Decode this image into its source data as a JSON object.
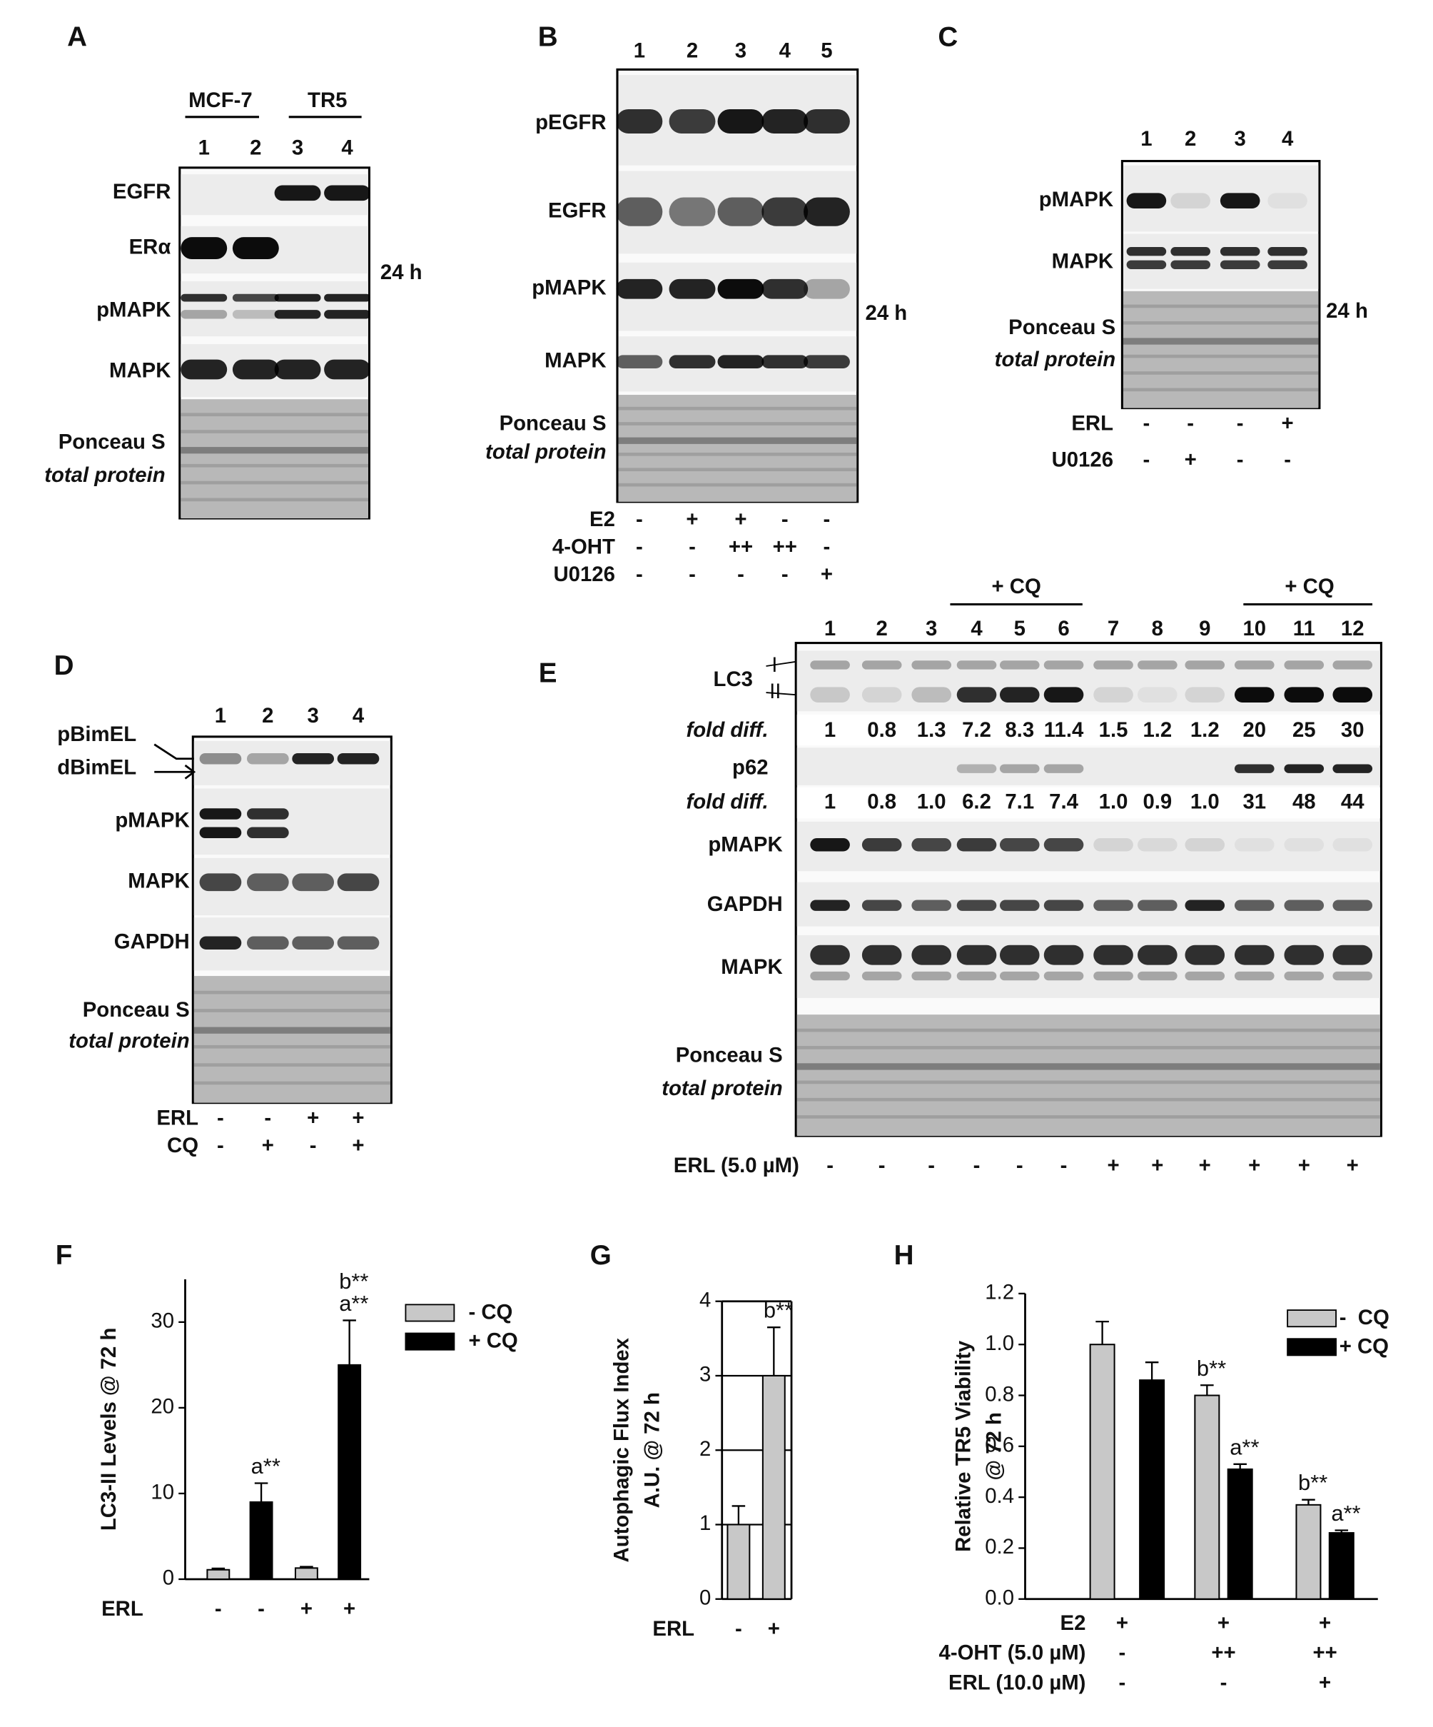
{
  "blots": {
    "A": {
      "label": "A",
      "groups": [
        {
          "name": "MCF-7",
          "lanes": [
            "1",
            "2"
          ]
        },
        {
          "name": "TR5",
          "lanes": [
            "3",
            "4"
          ]
        }
      ],
      "rows": [
        "EGFR",
        "ERα",
        "pMAPK",
        "MAPK"
      ],
      "loading": [
        "Ponceau S",
        "total protein"
      ],
      "time": "24 h"
    },
    "B": {
      "label": "B",
      "lanes": [
        "1",
        "2",
        "3",
        "4",
        "5"
      ],
      "rows": [
        "pEGFR",
        "EGFR",
        "pMAPK",
        "MAPK"
      ],
      "loading": [
        "Ponceau S",
        "total protein"
      ],
      "time": "24 h",
      "treatments": [
        {
          "label": "E2",
          "values": [
            "-",
            "+",
            "+",
            "-",
            "-"
          ]
        },
        {
          "label": "4-OHT",
          "values": [
            "-",
            "-",
            "++",
            "++",
            "-"
          ]
        },
        {
          "label": "U0126",
          "values": [
            "-",
            "-",
            "-",
            "-",
            "+"
          ]
        }
      ]
    },
    "C": {
      "label": "C",
      "lanes": [
        "1",
        "2",
        "3",
        "4"
      ],
      "rows": [
        "pMAPK",
        "MAPK"
      ],
      "loading": [
        "Ponceau S",
        "total protein"
      ],
      "time": "24 h",
      "treatments": [
        {
          "label": "ERL",
          "values": [
            "-",
            "-",
            "-",
            "+"
          ]
        },
        {
          "label": "U0126",
          "values": [
            "-",
            "+",
            "-",
            "-"
          ]
        }
      ]
    },
    "D": {
      "label": "D",
      "lanes": [
        "1",
        "2",
        "3",
        "4"
      ],
      "bim": [
        "pBimEL",
        "dBimEL"
      ],
      "rows": [
        "pMAPK",
        "MAPK",
        "GAPDH"
      ],
      "loading": [
        "Ponceau S",
        "total protein"
      ],
      "treatments": [
        {
          "label": "ERL",
          "values": [
            "-",
            "-",
            "+",
            "+"
          ]
        },
        {
          "label": "CQ",
          "values": [
            "-",
            "+",
            "-",
            "+"
          ]
        }
      ]
    },
    "E": {
      "label": "E",
      "groups": [
        "+ CQ",
        "+ CQ"
      ],
      "lanes": [
        "1",
        "2",
        "3",
        "4",
        "5",
        "6",
        "7",
        "8",
        "9",
        "10",
        "11",
        "12"
      ],
      "lc3": {
        "label": "LC3",
        "forms": [
          "I",
          "II"
        ]
      },
      "fold_label": "fold diff.",
      "lc3_fold": [
        "1",
        "0.8",
        "1.3",
        "7.2",
        "8.3",
        "11.4",
        "1.5",
        "1.2",
        "1.2",
        "20",
        "25",
        "30"
      ],
      "p62": "p62",
      "p62_fold": [
        "1",
        "0.8",
        "1.0",
        "6.2",
        "7.1",
        "7.4",
        "1.0",
        "0.9",
        "1.0",
        "31",
        "48",
        "44"
      ],
      "rows": [
        "pMAPK",
        "GAPDH",
        "MAPK"
      ],
      "loading": [
        "Ponceau S",
        "total protein"
      ],
      "treatments": [
        {
          "label": "ERL (5.0 µM)",
          "values": [
            "-",
            "-",
            "-",
            "-",
            "-",
            "-",
            "+",
            "+",
            "+",
            "+",
            "+",
            "+"
          ]
        }
      ]
    }
  },
  "chart_data": [
    {
      "panel": "F",
      "type": "bar",
      "y_label": "LC3-II Levels @ 72 h",
      "x_label": "ERL",
      "categories": [
        "-",
        "-",
        "+",
        "+"
      ],
      "series": [
        {
          "name": "- CQ",
          "color": "#c8c8c8",
          "values": [
            1.1,
            null,
            1.3,
            null
          ],
          "errors": [
            0.15,
            null,
            0.15,
            null
          ],
          "annotations": [
            null,
            null,
            null,
            null
          ]
        },
        {
          "name": "+ CQ",
          "color": "#000000",
          "values": [
            null,
            9,
            null,
            25
          ],
          "errors": [
            null,
            2.2,
            null,
            5.2
          ],
          "annotations": [
            null,
            [
              "a**"
            ],
            null,
            [
              "b**",
              "a**"
            ]
          ]
        }
      ],
      "ylim": [
        0,
        35
      ],
      "yticks": [
        0,
        10,
        20,
        30
      ],
      "grid": false
    },
    {
      "panel": "G",
      "type": "bar",
      "y_label": [
        "Autophagic Flux Index",
        "A.U. @ 72 h"
      ],
      "x_label": "ERL",
      "categories": [
        "-",
        "+"
      ],
      "series": [
        {
          "color": "#c8c8c8",
          "values": [
            1,
            3
          ],
          "errors": [
            0.25,
            0.65
          ],
          "annotations": [
            null,
            [
              "b**"
            ]
          ]
        }
      ],
      "ylim": [
        0,
        4
      ],
      "yticks": [
        0,
        1,
        2,
        3,
        4
      ],
      "grid": true
    },
    {
      "panel": "H",
      "type": "bar",
      "y_label": [
        "Relative TR5 Viability",
        "@ 72 h"
      ],
      "categories": [
        null,
        null,
        null
      ],
      "conditions": [
        {
          "label": "E2",
          "values": [
            "+",
            "+",
            "+"
          ]
        },
        {
          "label": "4-OHT (5.0 µM)",
          "values": [
            "-",
            "++",
            "++"
          ]
        },
        {
          "label": "ERL (10.0 µM)",
          "values": [
            "-",
            "-",
            "+"
          ]
        }
      ],
      "series": [
        {
          "name": "-  CQ",
          "color": "#c8c8c8",
          "values": [
            1.0,
            0.8,
            0.37
          ],
          "errors": [
            0.09,
            0.04,
            0.02
          ],
          "annotations": [
            null,
            [
              "b**"
            ],
            [
              "b**"
            ]
          ]
        },
        {
          "name": "+ CQ",
          "color": "#000000",
          "values": [
            0.86,
            0.51,
            0.26
          ],
          "errors": [
            0.07,
            0.02,
            0.01
          ],
          "annotations": [
            null,
            [
              "a**"
            ],
            [
              "a**"
            ]
          ]
        }
      ],
      "ylim": [
        0,
        1.2
      ],
      "yticks": [
        {
          "value": 0,
          "label": "0.0"
        },
        0.2,
        0.4,
        0.6,
        0.8,
        {
          "value": 1,
          "label": "1.0"
        },
        1.2
      ],
      "grid": false
    }
  ]
}
